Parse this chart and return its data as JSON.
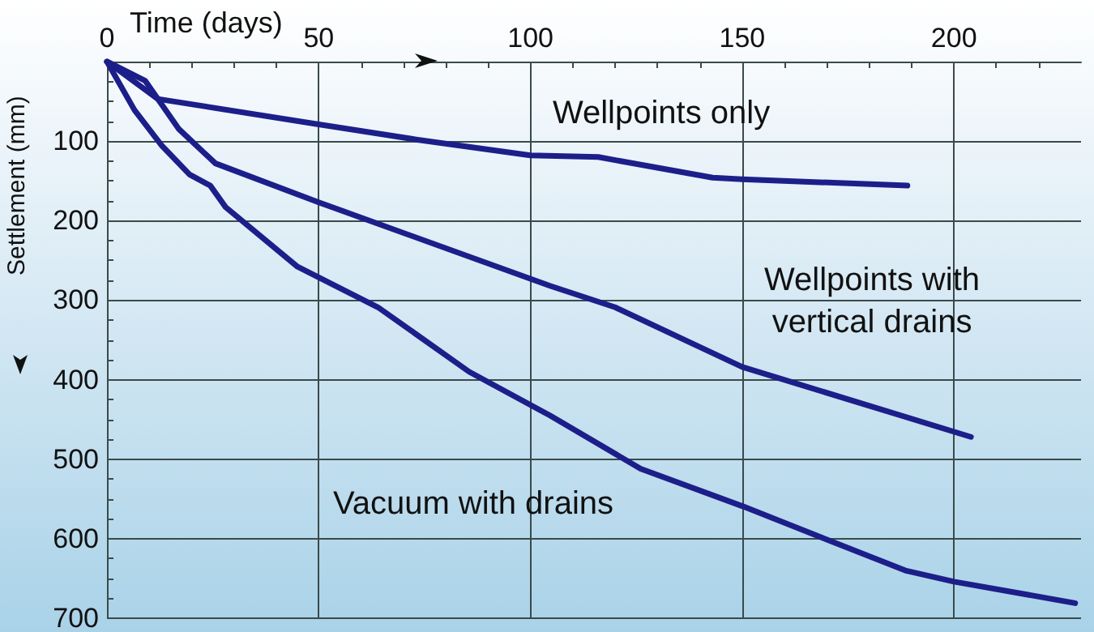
{
  "chart_data": {
    "type": "line",
    "xlabel": "Time (days)",
    "ylabel": "Settlement (mm)",
    "xlim": [
      0,
      230
    ],
    "xticks": [
      0,
      50,
      100,
      150,
      200
    ],
    "ylim": [
      700,
      0
    ],
    "yticks": [
      100,
      200,
      300,
      400,
      500,
      600,
      700
    ],
    "grid": true,
    "marker": "none",
    "line_style": "solid",
    "series": [
      {
        "name": "Wellpoints only",
        "color": "#1c1f8a",
        "x": [
          0,
          12,
          50,
          73,
          100,
          116,
          143,
          150,
          189
        ],
        "values": [
          0,
          47,
          79,
          98,
          118,
          120,
          146,
          148,
          156
        ]
      },
      {
        "name": "Wellpoints with\nvertical drains",
        "color": "#1c1f8a",
        "x": [
          0,
          9,
          17,
          25.6,
          50,
          104.6,
          120,
          150,
          204
        ],
        "values": [
          0,
          24,
          85,
          128,
          177,
          282,
          309,
          384,
          472
        ]
      },
      {
        "name": "Vacuum with drains",
        "color": "#1c1f8a",
        "x": [
          0,
          6.5,
          13,
          19.5,
          24.4,
          28,
          45,
          64,
          85.5,
          104.6,
          126,
          150,
          188.5,
          200,
          228.6
        ],
        "values": [
          0,
          61,
          106,
          142,
          156,
          183,
          258,
          309,
          390,
          445,
          512,
          559,
          640,
          654,
          681
        ]
      }
    ]
  }
}
